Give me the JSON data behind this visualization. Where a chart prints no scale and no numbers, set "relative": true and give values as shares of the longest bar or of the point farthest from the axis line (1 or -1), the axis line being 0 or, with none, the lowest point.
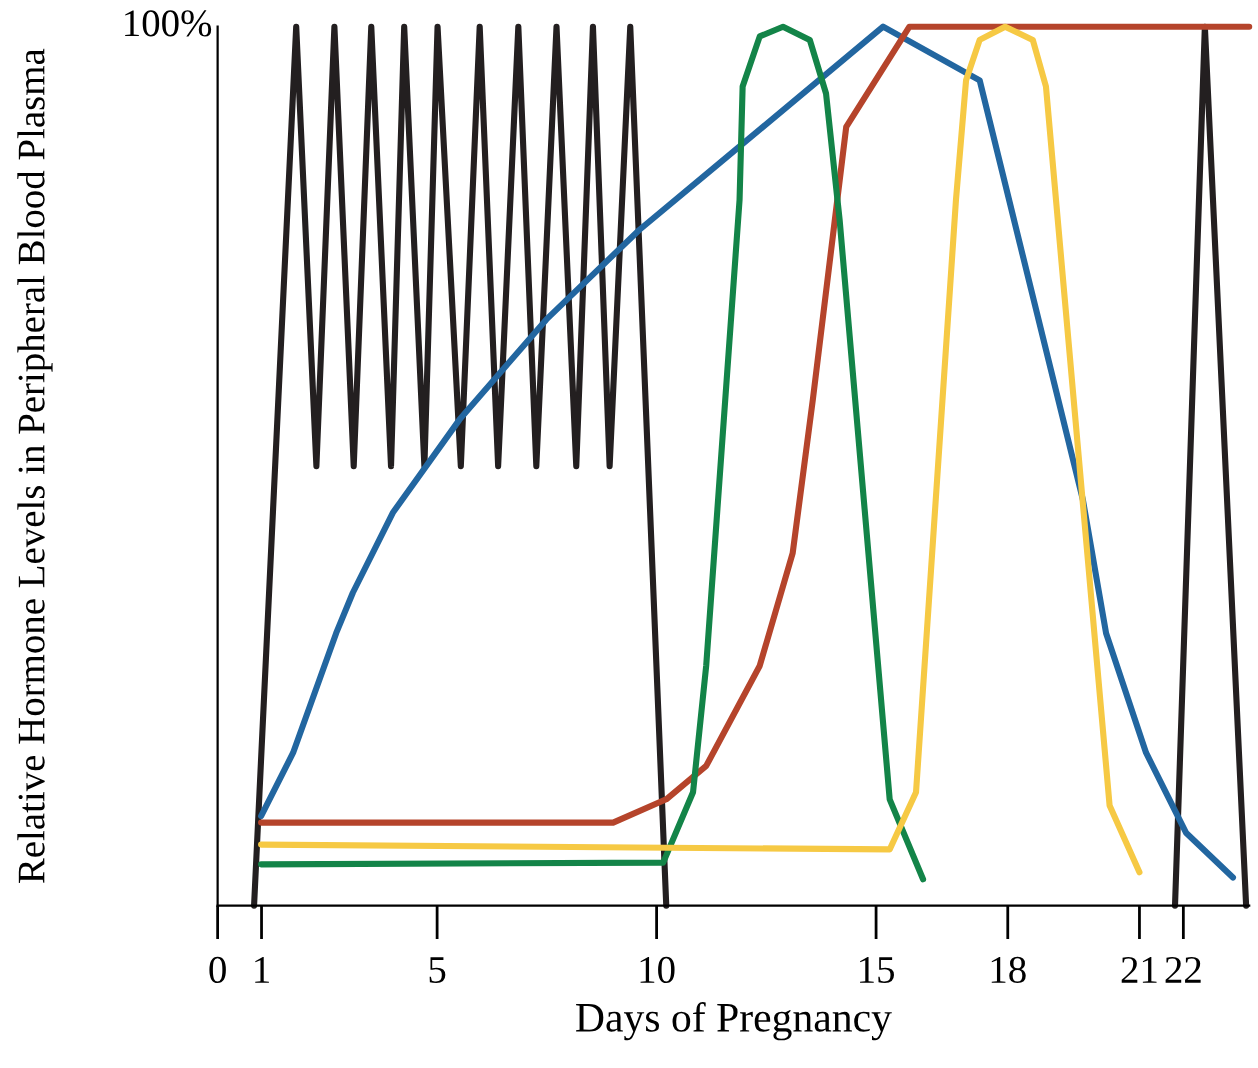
{
  "chart_data": {
    "type": "line",
    "relative": true,
    "xlabel": "Days of Pregnancy",
    "ylabel": "Relative Hormone Levels in Peripheral Blood Plasma",
    "annotations": [
      "100%"
    ],
    "xlim": [
      0,
      23.5
    ],
    "xticks": [
      0,
      1,
      5,
      10,
      15,
      18,
      21,
      22
    ],
    "marker": "none",
    "line_style": "solid",
    "series": [
      {
        "color": "#231f20",
        "x": [
          0.83,
          1.79,
          2.25,
          2.66,
          3.1,
          3.5,
          3.95,
          4.25,
          4.71,
          5.01,
          5.54,
          5.97,
          6.39,
          6.85,
          7.26,
          7.72,
          8.17,
          8.55,
          8.93,
          9.4,
          10.22,
          16,
          21.81,
          22.49,
          23.43
        ],
        "values": [
          0,
          1,
          0.5,
          1,
          0.5,
          1,
          0.5,
          1,
          0.5,
          1,
          0.5,
          1,
          0.5,
          1,
          0.5,
          1,
          0.5,
          1,
          0.5,
          1,
          0,
          null,
          0,
          1,
          0
        ]
      },
      {
        "color": "#2266a0",
        "x": [
          0.99,
          1.72,
          2.7,
          3.08,
          3.99,
          5.51,
          7.49,
          9.61,
          11.44,
          15.16,
          17.36,
          19.71,
          20.24,
          21.15,
          22.06,
          23.13
        ],
        "values": [
          0.102,
          0.174,
          0.31,
          0.356,
          0.447,
          0.553,
          0.667,
          0.769,
          0.845,
          1.0,
          0.939,
          0.462,
          0.31,
          0.174,
          0.083,
          0.032
        ]
      },
      {
        "color": "#b5442b",
        "x": [
          0.99,
          9.01,
          10.22,
          11.13,
          12.35,
          13.1,
          13.56,
          14.32,
          15.76,
          23.5
        ],
        "values": [
          0.0945,
          0.0945,
          0.121,
          0.159,
          0.273,
          0.401,
          0.576,
          0.886,
          1.0,
          1.0
        ]
      },
      {
        "color": "#138448",
        "x": [
          0.99,
          10.15,
          10.83,
          11.13,
          11.89,
          11.96,
          12.35,
          12.88,
          13.49,
          13.86,
          14.17,
          15.31,
          16.07
        ],
        "values": [
          0.047,
          0.049,
          0.129,
          0.273,
          0.803,
          0.932,
          0.989,
          1.0,
          0.985,
          0.924,
          0.78,
          0.121,
          0.03
        ]
      },
      {
        "color": "#f6c944",
        "x": [
          0.99,
          15.31,
          15.91,
          16.82,
          17.05,
          17.36,
          17.94,
          18.57,
          18.87,
          20.32,
          21.0
        ],
        "values": [
          0.0695,
          0.064,
          0.129,
          0.803,
          0.939,
          0.985,
          1.0,
          0.985,
          0.932,
          0.114,
          0.038
        ]
      }
    ]
  }
}
